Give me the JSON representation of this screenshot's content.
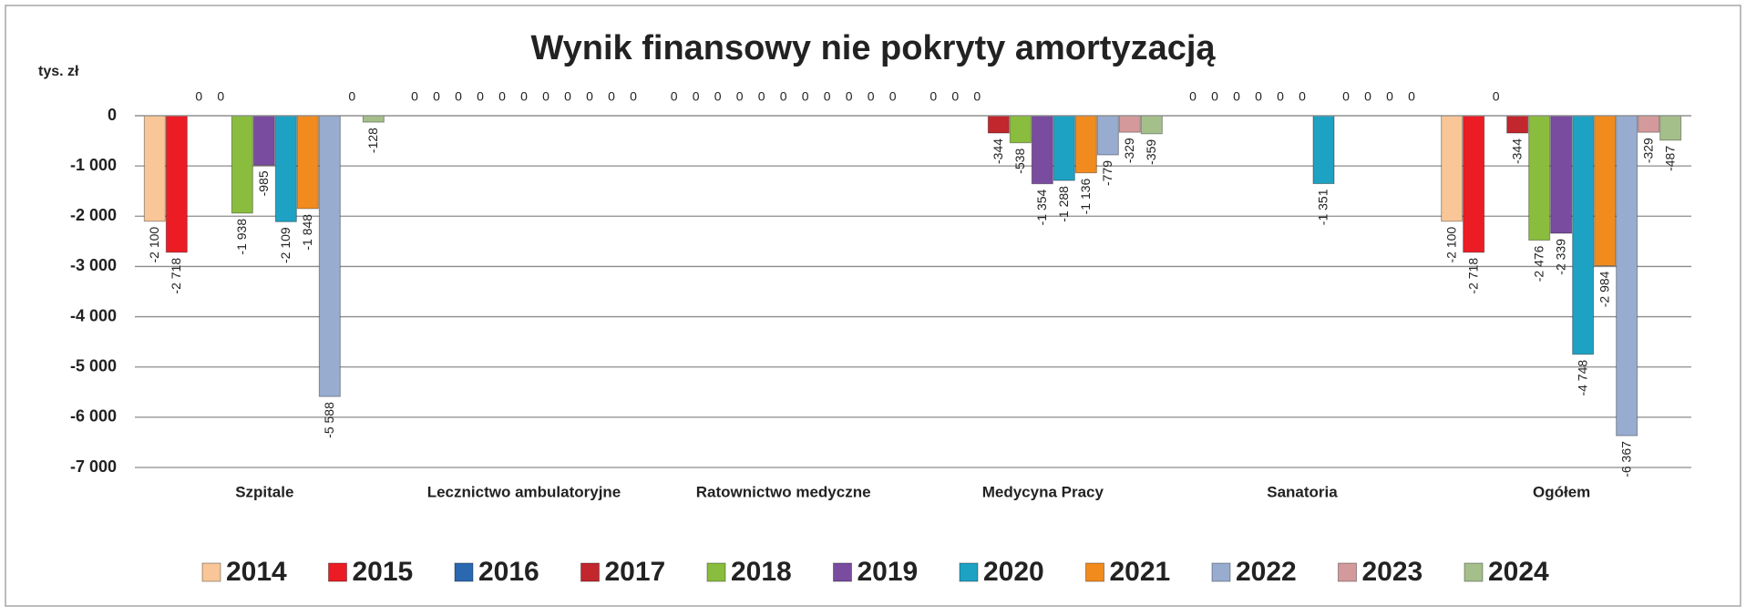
{
  "chart_data": {
    "type": "bar",
    "title": "Wynik finansowy nie pokryty amortyzacją",
    "y_label": "tys. zł",
    "categories": [
      "Szpitale",
      "Lecznictwo ambulatoryjne",
      "Ratownictwo medyczne",
      "Medycyna Pracy",
      "Sanatoria",
      "Ogółem"
    ],
    "series": [
      {
        "name": "2014",
        "color": "#f8c697",
        "values": [
          -2100,
          0,
          0,
          0,
          0,
          -2100
        ],
        "value_labels": [
          "-2 100",
          "0",
          "0",
          "0",
          "0",
          "-2 100"
        ]
      },
      {
        "name": "2015",
        "color": "#ec1c24",
        "values": [
          -2718,
          0,
          0,
          0,
          0,
          -2718
        ],
        "value_labels": [
          "-2 718",
          "0",
          "0",
          "0",
          "0",
          "-2 718"
        ]
      },
      {
        "name": "2016",
        "color": "#2a69b0",
        "values": [
          0,
          0,
          0,
          0,
          0,
          0
        ],
        "value_labels": [
          "0",
          "0",
          "0",
          "0",
          "0",
          "0"
        ]
      },
      {
        "name": "2017",
        "color": "#c1272d",
        "values": [
          0,
          0,
          0,
          -344,
          0,
          -344
        ],
        "value_labels": [
          "0",
          "0",
          "0",
          "-344",
          "0",
          "-344"
        ]
      },
      {
        "name": "2018",
        "color": "#8abd3e",
        "values": [
          -1938,
          0,
          0,
          -538,
          0,
          -2476
        ],
        "value_labels": [
          "-1 938",
          "0",
          "0",
          "-538",
          "0",
          "-2 476"
        ]
      },
      {
        "name": "2019",
        "color": "#7a4c9f",
        "values": [
          -985,
          0,
          0,
          -1354,
          0,
          -2339
        ],
        "value_labels": [
          "-985",
          "0",
          "0",
          "-1 354",
          "0",
          "-2 339"
        ]
      },
      {
        "name": "2020",
        "color": "#1ea2c3",
        "values": [
          -2109,
          0,
          0,
          -1288,
          -1351,
          -4748
        ],
        "value_labels": [
          "-2 109",
          "0",
          "0",
          "-1 288",
          "-1 351",
          "-4 748"
        ]
      },
      {
        "name": "2021",
        "color": "#f28b1d",
        "values": [
          -1848,
          0,
          0,
          -1136,
          0,
          -2984
        ],
        "value_labels": [
          "-1 848",
          "0",
          "0",
          "-1 136",
          "0",
          "-2 984"
        ]
      },
      {
        "name": "2022",
        "color": "#98acd0",
        "values": [
          -5588,
          0,
          0,
          -779,
          0,
          -6367
        ],
        "value_labels": [
          "-5 588",
          "0",
          "0",
          "-779",
          "0",
          "-6 367"
        ]
      },
      {
        "name": "2023",
        "color": "#d49a9b",
        "values": [
          0,
          0,
          0,
          -329,
          0,
          -329
        ],
        "value_labels": [
          "0",
          "0",
          "0",
          "-329",
          "0",
          "-329"
        ]
      },
      {
        "name": "2024",
        "color": "#a5bf8a",
        "values": [
          -128,
          0,
          0,
          -359,
          0,
          -487
        ],
        "value_labels": [
          "-128",
          "0",
          "0",
          "-359",
          "0",
          "-487"
        ]
      }
    ],
    "ylim": [
      -7000,
      0
    ],
    "yticks": [
      0,
      {
        "value": -1000,
        "label": "-1 000"
      },
      {
        "value": -2000,
        "label": "-2 000"
      },
      {
        "value": -3000,
        "label": "-3 000"
      },
      {
        "value": -4000,
        "label": "-4 000"
      },
      {
        "value": -5000,
        "label": "-5 000"
      },
      {
        "value": -6000,
        "label": "-6 000"
      },
      {
        "value": -7000,
        "label": "-7 000"
      }
    ],
    "grid": true,
    "legend": "bottom"
  }
}
